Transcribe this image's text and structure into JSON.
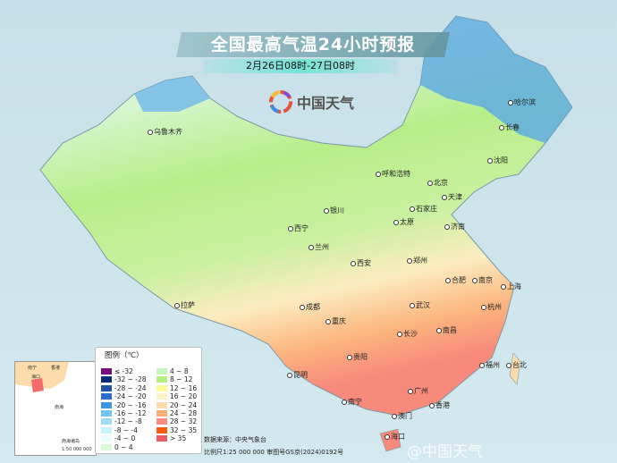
{
  "header": {
    "title": "全国最高气温24小时预报",
    "subtitle": "2月26日08时-27日08时"
  },
  "logo": {
    "text": "中国天气"
  },
  "cities": [
    "乌鲁木齐",
    "哈尔滨",
    "长春",
    "沈阳",
    "呼和浩特",
    "北京",
    "天津",
    "石家庄",
    "太原",
    "济南",
    "银川",
    "西宁",
    "兰州",
    "西安",
    "郑州",
    "合肥",
    "南京",
    "上海",
    "武汉",
    "杭州",
    "成都",
    "重庆",
    "长沙",
    "南昌",
    "拉萨",
    "贵阳",
    "福州",
    "台北",
    "昆明",
    "南宁",
    "广州",
    "香港",
    "澳门",
    "海口"
  ],
  "legend": {
    "title": "图例（℃）",
    "items": [
      {
        "label": "≤ -32",
        "color": "#7b0a7e"
      },
      {
        "label": "-32 ~ -28",
        "color": "#0a2a7a"
      },
      {
        "label": "-28 ~ -24",
        "color": "#1d54a4"
      },
      {
        "label": "-24 ~ -20",
        "color": "#2a6fd0"
      },
      {
        "label": "-20 ~ -16",
        "color": "#3d95e6"
      },
      {
        "label": "-16 ~ -12",
        "color": "#6fc6f5"
      },
      {
        "label": "-12 ~ -8",
        "color": "#9fdcf5"
      },
      {
        "label": "-8 ~ -4",
        "color": "#c7f3fb"
      },
      {
        "label": "-4 ~ 0",
        "color": "#ebfcff"
      },
      {
        "label": "0 ~ 4",
        "color": "#dcfbd8"
      },
      {
        "label": "4 ~ 8",
        "color": "#c3f7bb"
      },
      {
        "label": "8 ~ 12",
        "color": "#b0f27a"
      },
      {
        "label": "12 ~ 16",
        "color": "#fcfb98"
      },
      {
        "label": "16 ~ 20",
        "color": "#fcf2c8"
      },
      {
        "label": "20 ~ 24",
        "color": "#fcdcaa"
      },
      {
        "label": "24 ~ 28",
        "color": "#fcaf73"
      },
      {
        "label": "28 ~ 32",
        "color": "#fb8a80"
      },
      {
        "label": "32 ~ 35",
        "color": "#fb5a10"
      },
      {
        "label": "> 35",
        "color": "#ec5a64"
      }
    ]
  },
  "inset": {
    "labels": [
      "南宁",
      "海口",
      "香港",
      "南海",
      "南海诸岛"
    ],
    "scale": "1:50 000 000"
  },
  "source": {
    "line1": "数据来源：中央气象台",
    "line2": "比例尺1:25 000 000  审图号GS京(2024)0192号"
  },
  "watermark": "@中国天气"
}
